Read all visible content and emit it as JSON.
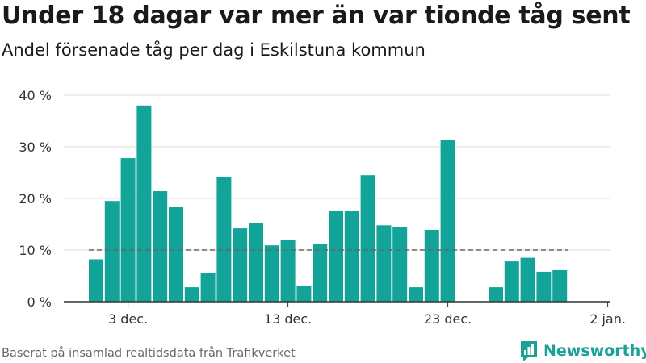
{
  "title": "Under 18 dagar var mer än var tionde tåg sent",
  "subtitle": "Andel försenade tåg per dag i Eskilstuna kommun",
  "source": "Baserat på insamlad realtidsdata från Trafikverket",
  "brand": {
    "name": "Newsworthy",
    "icon": "newsworthy-logo-icon",
    "color": "#19a295"
  },
  "colors": {
    "bar": "#12a498",
    "grid": "#dddddd",
    "axis": "#333333",
    "reference": "#666666"
  },
  "chart_data": {
    "type": "bar",
    "x_unit": "day",
    "x": [
      "2022-12-01",
      "2022-12-02",
      "2022-12-03",
      "2022-12-04",
      "2022-12-05",
      "2022-12-06",
      "2022-12-07",
      "2022-12-08",
      "2022-12-09",
      "2022-12-10",
      "2022-12-11",
      "2022-12-12",
      "2022-12-13",
      "2022-12-14",
      "2022-12-15",
      "2022-12-16",
      "2022-12-17",
      "2022-12-18",
      "2022-12-19",
      "2022-12-20",
      "2022-12-21",
      "2022-12-22",
      "2022-12-23",
      "2022-12-24",
      "2022-12-25",
      "2022-12-26",
      "2022-12-27",
      "2022-12-28",
      "2022-12-29",
      "2022-12-30"
    ],
    "values": [
      8.2,
      19.5,
      27.8,
      38.0,
      21.4,
      18.3,
      2.8,
      5.6,
      24.2,
      14.2,
      15.3,
      10.9,
      11.9,
      3.0,
      11.1,
      17.5,
      17.6,
      24.5,
      14.8,
      14.5,
      2.8,
      13.9,
      31.3,
      null,
      null,
      2.8,
      7.8,
      8.5,
      5.8,
      6.1
    ],
    "ylim": [
      0,
      40
    ],
    "y_ticks": [
      {
        "value": 0,
        "label": "0 %"
      },
      {
        "value": 10,
        "label": "10 %"
      },
      {
        "value": 20,
        "label": "20 %"
      },
      {
        "value": 30,
        "label": "30 %"
      },
      {
        "value": 40,
        "label": "40 %"
      }
    ],
    "x_ticks": [
      {
        "value": "2022-12-03",
        "label": "3 dec."
      },
      {
        "value": "2022-12-13",
        "label": "13 dec."
      },
      {
        "value": "2022-12-23",
        "label": "23 dec."
      },
      {
        "value": "2023-01-02",
        "label": "2 jan."
      }
    ],
    "reference_line": {
      "value": 10,
      "from": "2022-12-01",
      "to": "2022-12-31",
      "style": "dashed"
    },
    "grid": true,
    "legend": false,
    "title": "Under 18 dagar var mer än var tionde tåg sent",
    "subtitle": "Andel försenade tåg per dag i Eskilstuna kommun",
    "xlabel": "",
    "ylabel": ""
  }
}
